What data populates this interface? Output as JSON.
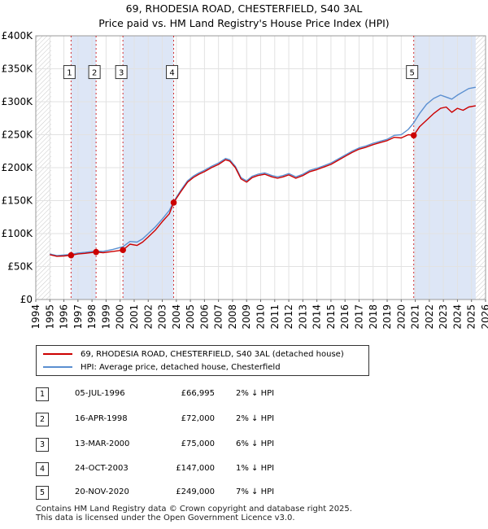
{
  "title_line1": "69, RHODESIA ROAD, CHESTERFIELD, S40 3AL",
  "title_line2": "Price paid vs. HM Land Registry's House Price Index (HPI)",
  "colors": {
    "price_line": "#cc0000",
    "hpi_line": "#5b8fd0",
    "band": "#dde6f6",
    "marker": "#cc0000",
    "badge_text": "#000000"
  },
  "legend": {
    "price_label": "69, RHODESIA ROAD, CHESTERFIELD, S40 3AL (detached house)",
    "hpi_label": "HPI: Average price, detached house, Chesterfield"
  },
  "chart_data": {
    "type": "line",
    "xlim": [
      1994,
      2026
    ],
    "ylim": [
      0,
      400000
    ],
    "x_ticks": [
      1994,
      1995,
      1996,
      1997,
      1998,
      1999,
      2000,
      2001,
      2002,
      2003,
      2004,
      2005,
      2006,
      2007,
      2008,
      2009,
      2010,
      2011,
      2012,
      2013,
      2014,
      2015,
      2016,
      2017,
      2018,
      2019,
      2020,
      2021,
      2022,
      2023,
      2024,
      2025,
      2026
    ],
    "y_ticks": [
      {
        "value": 0,
        "label": "£0"
      },
      {
        "value": 50000,
        "label": "£50K"
      },
      {
        "value": 100000,
        "label": "£100K"
      },
      {
        "value": 150000,
        "label": "£150K"
      },
      {
        "value": 200000,
        "label": "£200K"
      },
      {
        "value": 250000,
        "label": "£250K"
      },
      {
        "value": 300000,
        "label": "£300K"
      },
      {
        "value": 350000,
        "label": "£350K"
      },
      {
        "value": 400000,
        "label": "£400K"
      }
    ],
    "shaded_periods": [
      [
        1996.51,
        1998.29
      ],
      [
        2000.2,
        2003.81
      ],
      [
        2020.89,
        2025.3
      ]
    ],
    "hatched_periods": [
      [
        1994,
        1995.1
      ],
      [
        2025.3,
        2026
      ]
    ],
    "series": [
      {
        "name": "69, RHODESIA ROAD, CHESTERFIELD, S40 3AL (detached house)",
        "x": [
          1995.0,
          1995.5,
          1996.0,
          1996.51,
          1997.0,
          1997.5,
          1998.29,
          1998.8,
          1999.5,
          2000.2,
          2000.7,
          2001.2,
          2001.6,
          2002.0,
          2002.5,
          2003.0,
          2003.5,
          2003.81,
          2004.3,
          2004.8,
          2005.2,
          2005.6,
          2006.0,
          2006.5,
          2007.0,
          2007.5,
          2007.8,
          2008.2,
          2008.6,
          2009.0,
          2009.4,
          2009.8,
          2010.3,
          2010.8,
          2011.2,
          2011.6,
          2012.0,
          2012.5,
          2013.0,
          2013.5,
          2014.0,
          2014.5,
          2015.0,
          2015.5,
          2016.0,
          2016.5,
          2017.0,
          2017.5,
          2018.0,
          2018.5,
          2019.0,
          2019.5,
          2020.0,
          2020.5,
          2020.89,
          2021.3,
          2021.8,
          2022.3,
          2022.8,
          2023.2,
          2023.6,
          2024.0,
          2024.4,
          2024.8,
          2025.3
        ],
        "values": [
          68000,
          65500,
          66000,
          66995,
          69000,
          70000,
          72000,
          71000,
          73000,
          75000,
          84000,
          82000,
          87000,
          95000,
          105000,
          118000,
          130000,
          147000,
          163000,
          178000,
          185000,
          190000,
          194000,
          200000,
          205000,
          212000,
          210000,
          200000,
          183000,
          178000,
          185000,
          188000,
          190000,
          186000,
          184000,
          186000,
          189000,
          184000,
          188000,
          194000,
          197000,
          201000,
          205000,
          211000,
          217000,
          223000,
          228000,
          231000,
          235000,
          238000,
          241000,
          246000,
          245000,
          250000,
          249000,
          262000,
          272000,
          282000,
          290000,
          292000,
          284000,
          290000,
          287000,
          292000,
          294000
        ]
      },
      {
        "name": "HPI: Average price, detached house, Chesterfield",
        "x": [
          1995.0,
          1995.5,
          1996.0,
          1996.51,
          1997.0,
          1997.5,
          1998.29,
          1998.8,
          1999.5,
          2000.2,
          2000.7,
          2001.2,
          2001.6,
          2002.0,
          2002.5,
          2003.0,
          2003.5,
          2003.81,
          2004.3,
          2004.8,
          2005.2,
          2005.6,
          2006.0,
          2006.5,
          2007.0,
          2007.5,
          2007.8,
          2008.2,
          2008.6,
          2009.0,
          2009.4,
          2009.8,
          2010.3,
          2010.8,
          2011.2,
          2011.6,
          2012.0,
          2012.5,
          2013.0,
          2013.5,
          2014.0,
          2014.5,
          2015.0,
          2015.5,
          2016.0,
          2016.5,
          2017.0,
          2017.5,
          2018.0,
          2018.5,
          2019.0,
          2019.5,
          2020.0,
          2020.5,
          2020.89,
          2021.3,
          2021.8,
          2022.3,
          2022.8,
          2023.2,
          2023.6,
          2024.0,
          2024.4,
          2024.8,
          2025.3
        ],
        "values": [
          69000,
          66500,
          67500,
          68400,
          70500,
          71500,
          73500,
          73000,
          76000,
          80000,
          88000,
          87000,
          92000,
          100000,
          110000,
          122000,
          135000,
          148500,
          165000,
          180000,
          187000,
          192000,
          196000,
          202000,
          207000,
          214000,
          212000,
          202000,
          185000,
          180000,
          187000,
          190000,
          192000,
          188000,
          186000,
          188000,
          191000,
          186000,
          190000,
          196000,
          199000,
          203000,
          207000,
          213000,
          219000,
          225000,
          230000,
          233000,
          237000,
          240000,
          243000,
          249000,
          250000,
          258000,
          268000,
          282000,
          296000,
          305000,
          310000,
          307000,
          304000,
          310000,
          315000,
          320000,
          322000
        ]
      }
    ],
    "sales": [
      {
        "label": "1",
        "x": 1996.51,
        "y": 66995
      },
      {
        "label": "2",
        "x": 1998.29,
        "y": 72000
      },
      {
        "label": "3",
        "x": 2000.2,
        "y": 75000
      },
      {
        "label": "4",
        "x": 2003.81,
        "y": 147000
      },
      {
        "label": "5",
        "x": 2020.89,
        "y": 249000
      }
    ],
    "badge_y_value": 345000
  },
  "table": [
    {
      "num": "1",
      "date": "05-JUL-1996",
      "price": "£66,995",
      "delta": "2% ↓ HPI"
    },
    {
      "num": "2",
      "date": "16-APR-1998",
      "price": "£72,000",
      "delta": "2% ↓ HPI"
    },
    {
      "num": "3",
      "date": "13-MAR-2000",
      "price": "£75,000",
      "delta": "6% ↓ HPI"
    },
    {
      "num": "4",
      "date": "24-OCT-2003",
      "price": "£147,000",
      "delta": "1% ↓ HPI"
    },
    {
      "num": "5",
      "date": "20-NOV-2020",
      "price": "£249,000",
      "delta": "7% ↓ HPI"
    }
  ],
  "footer": {
    "line1": "Contains HM Land Registry data © Crown copyright and database right 2025.",
    "line2": "This data is licensed under the Open Government Licence v3.0."
  }
}
